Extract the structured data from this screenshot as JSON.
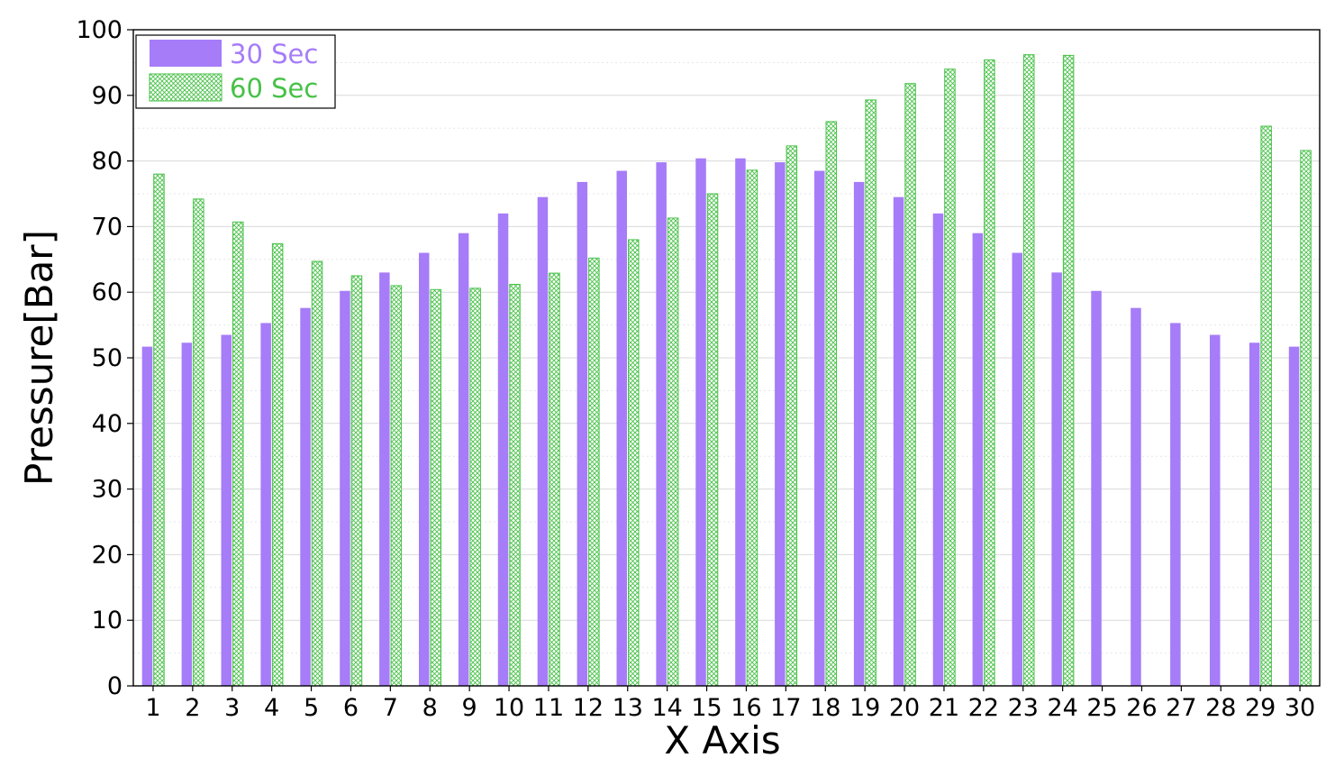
{
  "chart_data": {
    "type": "bar",
    "title": "",
    "xlabel": "X Axis",
    "ylabel": "Pressure[Bar]",
    "ylim": [
      0,
      100
    ],
    "yticks": [
      "0",
      "10",
      "20",
      "30",
      "40",
      "50",
      "60",
      "70",
      "80",
      "90",
      "100"
    ],
    "categories": [
      "1",
      "2",
      "3",
      "4",
      "5",
      "6",
      "7",
      "8",
      "9",
      "10",
      "11",
      "12",
      "13",
      "14",
      "15",
      "16",
      "17",
      "18",
      "19",
      "20",
      "21",
      "22",
      "23",
      "24",
      "25",
      "26",
      "27",
      "28",
      "29",
      "30"
    ],
    "series": [
      {
        "name": "30 Sec",
        "color": "#a67cf8",
        "fill": "solid",
        "values": [
          51.7,
          52.3,
          53.5,
          55.3,
          57.6,
          60.2,
          63.0,
          66.0,
          69.0,
          72.0,
          74.5,
          76.8,
          78.5,
          79.8,
          80.4,
          80.4,
          79.8,
          78.5,
          76.8,
          74.5,
          72.0,
          69.0,
          66.0,
          63.0,
          60.2,
          57.6,
          55.3,
          53.5,
          52.3,
          51.7
        ]
      },
      {
        "name": "60 Sec",
        "color": "#47c147",
        "fill": "crosshatch",
        "values": [
          78.0,
          74.2,
          70.7,
          67.4,
          64.7,
          62.5,
          61.0,
          60.4,
          60.6,
          61.2,
          62.9,
          65.2,
          68.0,
          71.3,
          75.0,
          78.6,
          82.3,
          86.0,
          89.3,
          91.8,
          94.0,
          95.4,
          96.2,
          96.1,
          0,
          0,
          0,
          0,
          85.3,
          81.6
        ]
      }
    ],
    "grid": "horizontal",
    "legend_position": "top-left"
  }
}
